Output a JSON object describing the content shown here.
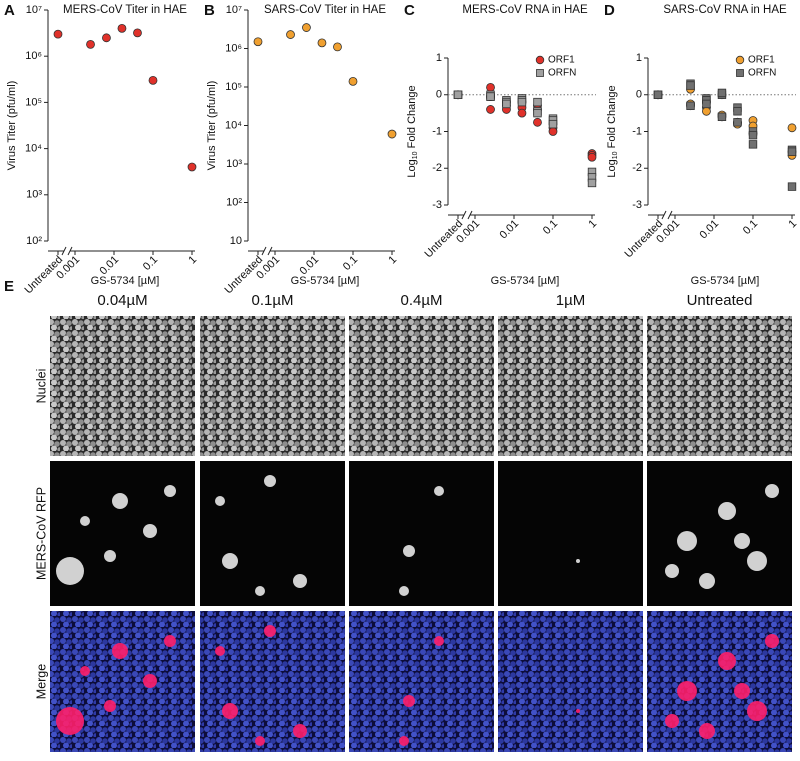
{
  "chart_data": [
    {
      "type": "scatter",
      "panel": "A",
      "title": "MERS-CoV Titer in HAE",
      "ylabel": "Virus Titer (pfu/ml)",
      "xlabel": "GS-5734 [µM]",
      "log_y": true,
      "log_x": true,
      "untreated_label": "Untreated",
      "untreated_value": 3000000,
      "x": [
        0.0025,
        0.0064,
        0.016,
        0.04,
        0.1,
        1
      ],
      "values": [
        1800000,
        2500000,
        4000000,
        3200000,
        300000,
        4000
      ],
      "color": "#e0312a",
      "xlim": [
        0.001,
        1
      ],
      "xticks": [
        0.001,
        0.01,
        0.1,
        1
      ],
      "ylim": [
        100,
        10000000
      ],
      "yticks": [
        {
          "value": 100,
          "label": "10²"
        },
        {
          "value": 1000,
          "label": "10³"
        },
        {
          "value": 10000,
          "label": "10⁴"
        },
        {
          "value": 100000,
          "label": "10⁵"
        },
        {
          "value": 1000000,
          "label": "10⁶"
        },
        {
          "value": 10000000,
          "label": "10⁷"
        }
      ]
    },
    {
      "type": "scatter",
      "panel": "B",
      "title": "SARS-CoV Titer in HAE",
      "ylabel": "Virus Titer (pfu/ml)",
      "xlabel": "GS-5734 [µM]",
      "log_y": true,
      "log_x": true,
      "untreated_label": "Untreated",
      "untreated_value": 1500000,
      "x": [
        0.0025,
        0.0064,
        0.016,
        0.04,
        0.1,
        1
      ],
      "values": [
        2300000,
        3500000,
        1400000,
        1100000,
        140000,
        6000
      ],
      "color": "#f0a030",
      "xlim": [
        0.001,
        1
      ],
      "xticks": [
        0.001,
        0.01,
        0.1,
        1
      ],
      "ylim": [
        10,
        10000000
      ],
      "yticks": [
        {
          "value": 10,
          "label": "10"
        },
        {
          "value": 100,
          "label": "10²"
        },
        {
          "value": 1000,
          "label": "10³"
        },
        {
          "value": 10000,
          "label": "10⁴"
        },
        {
          "value": 100000,
          "label": "10⁵"
        },
        {
          "value": 1000000,
          "label": "10⁶"
        },
        {
          "value": 10000000,
          "label": "10⁷"
        }
      ]
    },
    {
      "type": "scatter",
      "panel": "C",
      "title": "MERS-CoV RNA in HAE",
      "ylabel_prefix": "Log",
      "ylabel_sub": "10",
      "ylabel": "Fold Change",
      "xlabel": "GS-5734 [µM]",
      "log_x": true,
      "zero_line": true,
      "legend": "upper right",
      "untreated_label": "Untreated",
      "series": [
        {
          "name": "ORF1",
          "color": "#e0312a",
          "marker": "circle",
          "untreated_values": [
            0,
            0,
            0
          ],
          "x": [
            0.0025,
            0.0025,
            0.0025,
            0.0064,
            0.0064,
            0.0064,
            0.016,
            0.016,
            0.016,
            0.04,
            0.04,
            0.04,
            0.1,
            0.1,
            0.1,
            1,
            1,
            1
          ],
          "values": [
            0.2,
            -0.05,
            -0.4,
            -0.2,
            -0.3,
            -0.4,
            -0.2,
            -0.35,
            -0.5,
            -0.3,
            -0.4,
            -0.75,
            -0.8,
            -0.9,
            -1.0,
            -1.6,
            -1.65,
            -1.7
          ]
        },
        {
          "name": "ORFN",
          "color": "#a0a0a0",
          "marker": "square",
          "untreated_values": [
            0,
            0,
            0
          ],
          "x": [
            0.0025,
            0.0025,
            0.0025,
            0.0064,
            0.0064,
            0.0064,
            0.016,
            0.016,
            0.016,
            0.04,
            0.04,
            0.04,
            0.1,
            0.1,
            0.1,
            1,
            1,
            1
          ],
          "values": [
            0.0,
            -0.05,
            -0.05,
            -0.15,
            -0.2,
            -0.25,
            -0.1,
            -0.15,
            -0.2,
            -0.2,
            -0.45,
            -0.5,
            -0.65,
            -0.7,
            -0.8,
            -2.1,
            -2.25,
            -2.4
          ]
        }
      ],
      "xlim": [
        0.001,
        1
      ],
      "xticks": [
        0.001,
        0.01,
        0.1,
        1
      ],
      "ylim": [
        -3,
        1
      ],
      "yticks": [
        -3,
        -2,
        -1,
        0,
        1
      ]
    },
    {
      "type": "scatter",
      "panel": "D",
      "title": "SARS-CoV RNA in HAE",
      "ylabel_prefix": "Log",
      "ylabel_sub": "10",
      "ylabel": "Fold Change",
      "xlabel": "GS-5734 [µM]",
      "log_x": true,
      "zero_line": true,
      "legend": "upper right",
      "untreated_label": "Untreated",
      "series": [
        {
          "name": "ORF1",
          "color": "#f0a030",
          "marker": "circle",
          "untreated_values": [
            0,
            0,
            0
          ],
          "x": [
            0.0025,
            0.0025,
            0.0025,
            0.0064,
            0.0064,
            0.0064,
            0.016,
            0.016,
            0.016,
            0.04,
            0.04,
            0.04,
            0.1,
            0.1,
            0.1,
            1,
            1,
            1
          ],
          "values": [
            0.15,
            -0.25,
            -0.3,
            -0.2,
            -0.35,
            -0.45,
            0.0,
            -0.55,
            -0.6,
            -0.75,
            -0.75,
            -0.8,
            -0.7,
            -0.85,
            -1.05,
            -0.9,
            -1.55,
            -1.65
          ]
        },
        {
          "name": "ORFN",
          "color": "#707070",
          "marker": "square",
          "untreated_values": [
            0,
            0,
            0
          ],
          "x": [
            0.0025,
            0.0025,
            0.0025,
            0.0064,
            0.0064,
            0.0064,
            0.016,
            0.016,
            0.016,
            0.04,
            0.04,
            0.04,
            0.1,
            0.1,
            0.1,
            1,
            1,
            1
          ],
          "values": [
            0.3,
            0.25,
            -0.3,
            -0.1,
            -0.15,
            -0.25,
            0.0,
            0.05,
            -0.6,
            -0.35,
            -0.45,
            -0.75,
            -1.0,
            -1.1,
            -1.35,
            -1.5,
            -1.55,
            -2.5
          ]
        }
      ],
      "xlim": [
        0.001,
        1
      ],
      "xticks": [
        0.001,
        0.01,
        0.1,
        1
      ],
      "ylim": [
        -3,
        1
      ],
      "yticks": [
        -3,
        -2,
        -1,
        0,
        1
      ]
    }
  ],
  "panel_e": {
    "label": "E",
    "columns": [
      "0.04µM",
      "0.1µM",
      "0.4µM",
      "1µM",
      "Untreated"
    ],
    "rows": [
      "Nuclei",
      "MERS-CoV RFP",
      "Merge"
    ]
  }
}
